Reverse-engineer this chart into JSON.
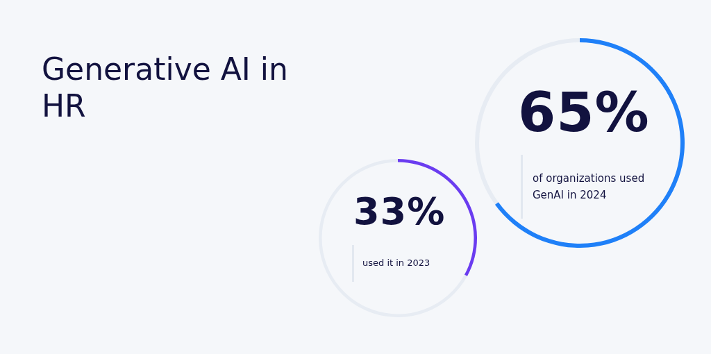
{
  "chart_data": [
    {
      "type": "other",
      "title": "Generative AI in HR"
    },
    {
      "type": "donut",
      "categories": [
        null,
        null
      ],
      "values": [
        65,
        35
      ],
      "colors": [
        "#1f80f8",
        "#e7ecf3"
      ],
      "value_labels": [
        "65%",
        null
      ],
      "annotations": [
        "of organizations used GenAI in 2024"
      ]
    },
    {
      "type": "donut",
      "categories": [
        null,
        null
      ],
      "values": [
        33,
        67
      ],
      "colors": [
        "#6a3cf0",
        "#e7ecf3"
      ],
      "value_labels": [
        "33%",
        null
      ],
      "annotations": [
        "used it in 2023"
      ]
    }
  ]
}
